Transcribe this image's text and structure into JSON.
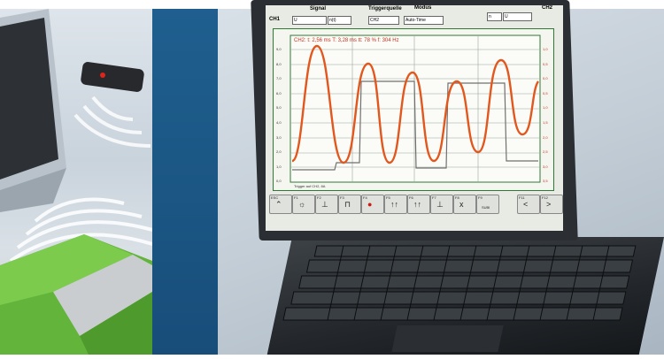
{
  "scope": {
    "channel_label": "CH1",
    "signal_label": "Signal",
    "trigger_label": "Triggerquelle",
    "mode_label": "Modus",
    "ch2_label": "CH2",
    "signal_value": "U",
    "signal_coupling": "n(t)",
    "trigger_value": "CH2",
    "mode_value": "Auto-Time",
    "right_select_a": "U",
    "right_select_prefix": "n",
    "readout": "CH2:  t: 2,56 ms   T: 3,28 ms   tt: 78 %   f: 304 Hz",
    "trigger_note": "Trigger auf CH2, 8A",
    "left_axis": [
      "9,0",
      "8,0",
      "7,0",
      "6,0",
      "5,0",
      "4,0",
      "3,0",
      "2,0",
      "1,0",
      "0,0"
    ],
    "right_axis": [
      "1,0",
      "0,5",
      "0,0",
      "0,5",
      "1,0",
      "1,5",
      "2,0",
      "2,5",
      "3,0",
      "3,5"
    ],
    "time_ticks": [
      "0",
      "2",
      "10",
      "18"
    ],
    "function_keys": [
      {
        "num": "ESC",
        "icon": "⌃"
      },
      {
        "num": "F1",
        "icon": "☼"
      },
      {
        "num": "F2",
        "icon": "⊥"
      },
      {
        "num": "F3",
        "icon": "⊓"
      },
      {
        "num": "F4",
        "icon": "●"
      },
      {
        "num": "F5",
        "icon": "↑↑"
      },
      {
        "num": "F6",
        "icon": "↑↑"
      },
      {
        "num": "F7",
        "icon": "⊥"
      },
      {
        "num": "F8",
        "icon": "x"
      },
      {
        "num": "F9",
        "icon": "SUBI"
      },
      {
        "num": "F11",
        "icon": "<"
      },
      {
        "num": "F12",
        "icon": ">"
      }
    ]
  },
  "colors": {
    "signal_orange": "#e2571d",
    "signal_gray": "#707070",
    "grid_green": "#2f7a33",
    "band_blue": "#1f5f8f"
  }
}
